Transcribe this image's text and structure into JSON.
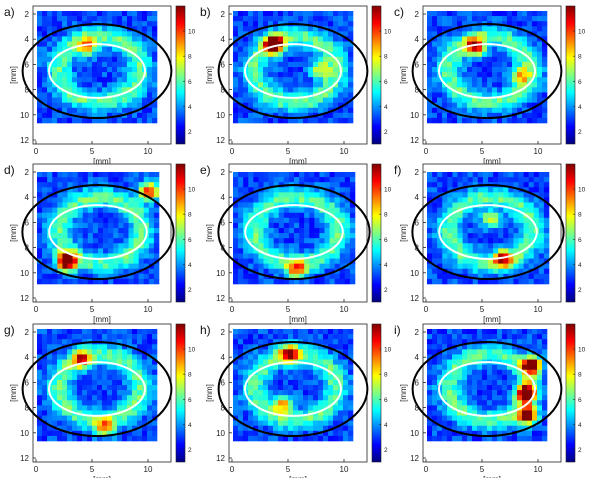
{
  "figure": {
    "colorbar_colors": [
      "#00007f",
      "#0000ff",
      "#0080ff",
      "#00ffff",
      "#80ff80",
      "#ffff00",
      "#ff8000",
      "#ff0000",
      "#800000"
    ],
    "panels": [
      {
        "label": "a)",
        "tall": false
      },
      {
        "label": "b)",
        "tall": false
      },
      {
        "label": "c)",
        "tall": false
      },
      {
        "label": "d)",
        "tall": true
      },
      {
        "label": "e)",
        "tall": true
      },
      {
        "label": "f)",
        "tall": true
      },
      {
        "label": "g)",
        "tall": false
      },
      {
        "label": "h)",
        "tall": false
      },
      {
        "label": "i)",
        "tall": false
      }
    ]
  },
  "chart_data": {
    "type": "heatmap",
    "xlabel": "[mm]",
    "ylabel": "[mm]",
    "x_ticks": [
      "0",
      "5",
      "10"
    ],
    "y_ticks": [
      "2",
      "4",
      "6",
      "8",
      "10",
      "12"
    ],
    "colorbar_ticks": [
      "2",
      "4",
      "6",
      "8",
      "10"
    ],
    "colorbar_range": [
      1,
      12
    ],
    "xlim": [
      0,
      12
    ],
    "ylim": [
      0,
      12
    ]
  }
}
